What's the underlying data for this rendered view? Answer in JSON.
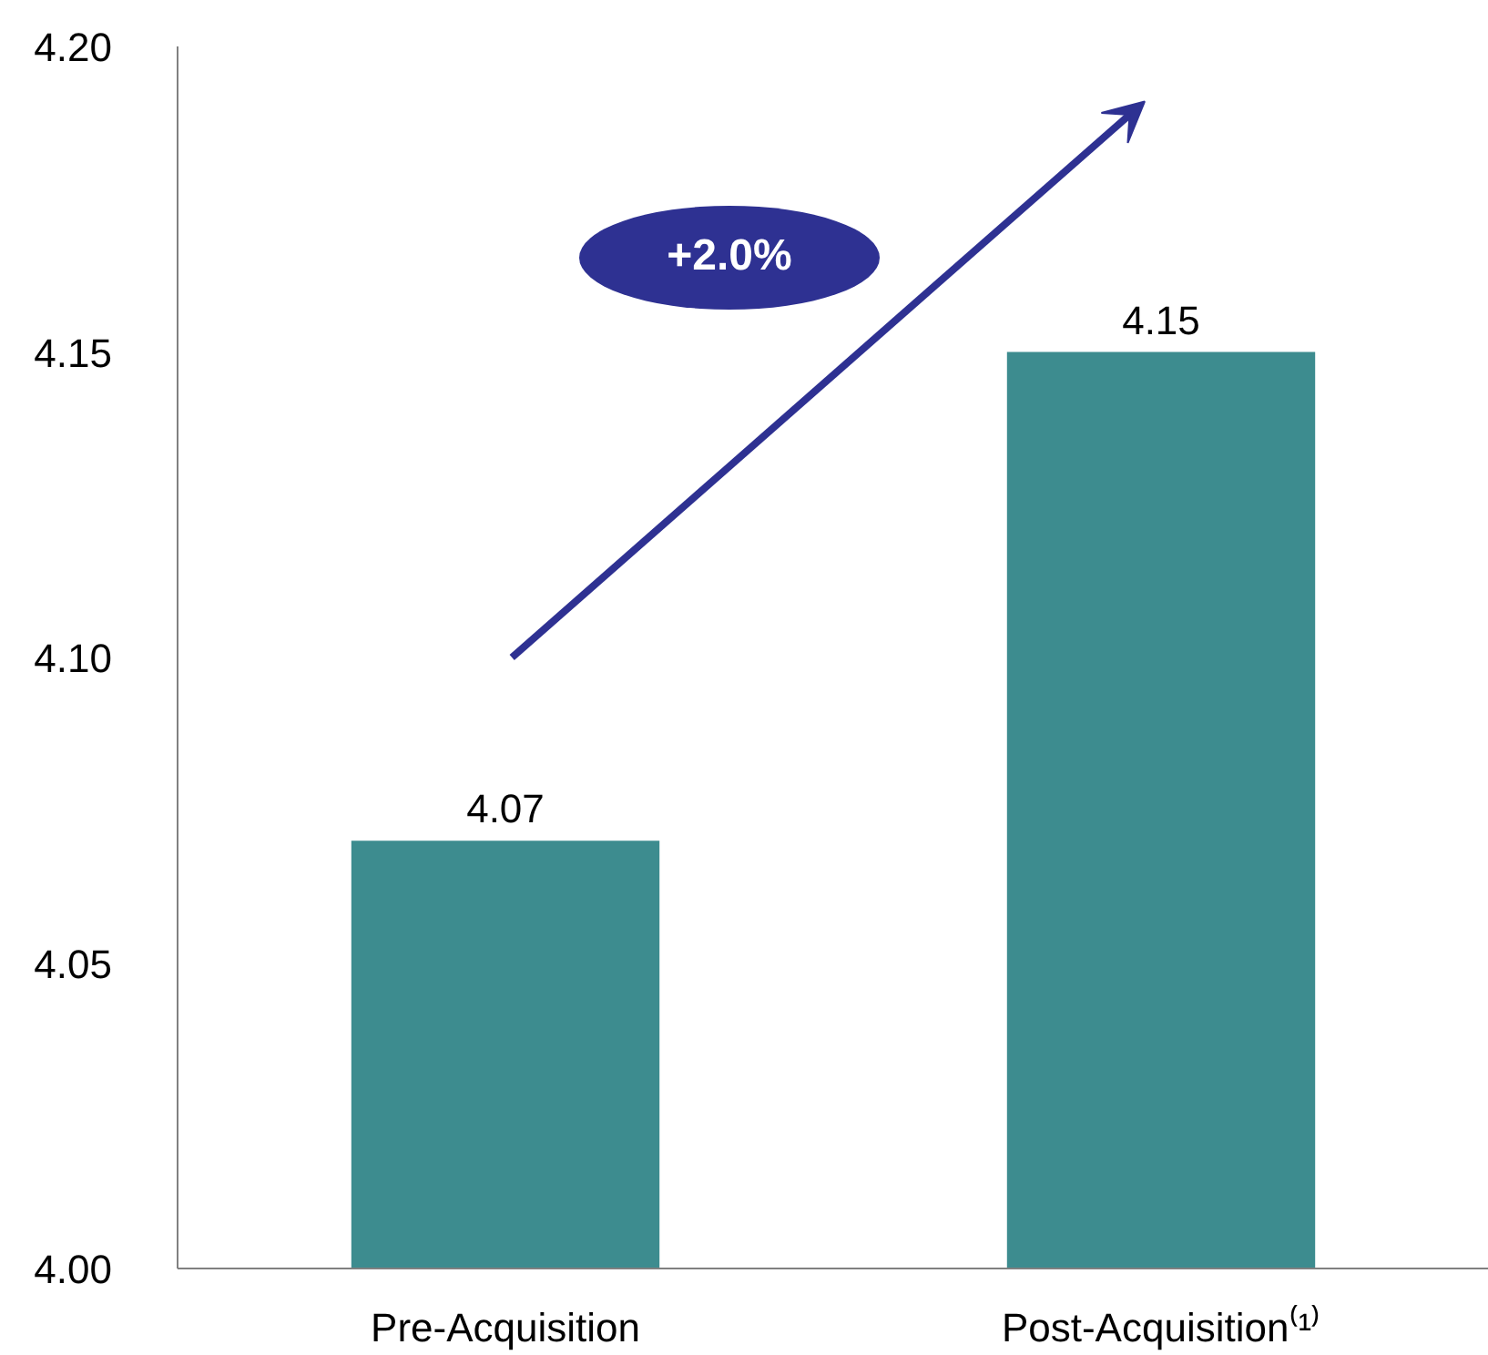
{
  "chart_data": {
    "type": "bar",
    "categories": [
      "Pre-Acquisition",
      "Post-Acquisition⁽¹⁾"
    ],
    "values": [
      4.07,
      4.15
    ],
    "color": "#3d8c8f",
    "ylim": [
      4.0,
      4.2
    ],
    "yticks": [
      {
        "value": 4.0,
        "label": "4.00"
      },
      {
        "value": 4.05,
        "label": "4.05"
      },
      {
        "value": 4.1,
        "label": "4.10"
      },
      {
        "value": 4.15,
        "label": "4.15"
      },
      {
        "value": 4.2,
        "label": "4.20"
      }
    ],
    "data_labels": true,
    "grid": false,
    "annotations": [
      "+2.0%"
    ]
  }
}
